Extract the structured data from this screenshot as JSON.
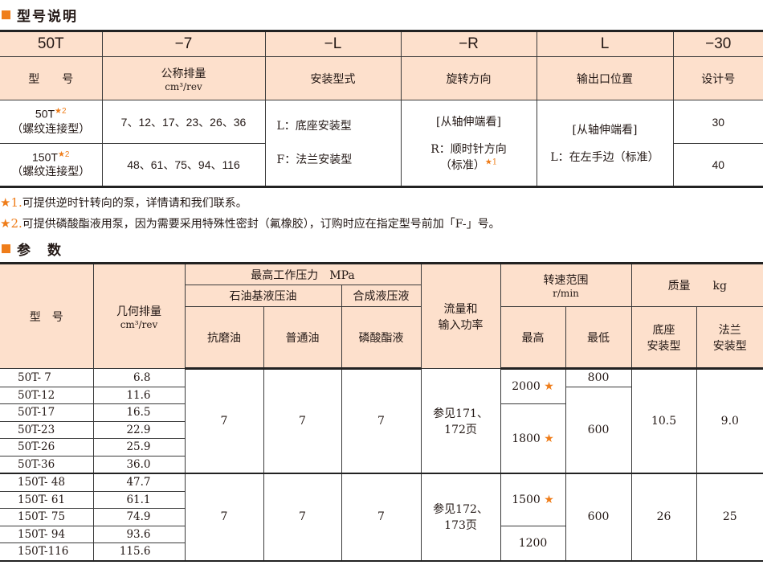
{
  "section1": {
    "title": "型号说明"
  },
  "model_table": {
    "codes": [
      "50T",
      "−7",
      "−L",
      "−R",
      "L",
      "−30"
    ],
    "headers": [
      "型　　号",
      "公称排量",
      "cm³/rev",
      "安装型式",
      "旋转方向",
      "输出口位置",
      "设计号"
    ],
    "rows": [
      {
        "model": "50T",
        "model_note": "★2",
        "type": "（螺纹连接型）",
        "displacement": "7、12、17、23、26、36",
        "design": "30"
      },
      {
        "model": "150T",
        "model_note": "★2",
        "type": "（螺纹连接型）",
        "displacement": "48、61、75、94、116",
        "design": "40"
      }
    ],
    "mounting": [
      "L：底座安装型",
      "F：法兰安装型"
    ],
    "rotation": [
      "[从轴伸端看]",
      "R：顺时针方向",
      "（标准）",
      "★1"
    ],
    "outlet": [
      "[从轴伸端看]",
      "L：在左手边（标准）"
    ]
  },
  "notes": [
    {
      "mark": "★1.",
      "text": "可提供逆时针转向的泵，详情请和我们联系。"
    },
    {
      "mark": "★2.",
      "text": "可提供磷酸酯液用泵，因为需要采用特殊性密封（氟橡胶），订购时应在指定型号前加「F-」号。"
    }
  ],
  "section2": {
    "title": "参　数"
  },
  "param_table": {
    "headers": {
      "model": "型　号",
      "disp": "几何排量",
      "disp_unit": "cm³/rev",
      "pressure": "最高工作压力　MPa",
      "petroleum": "石油基液压油",
      "synthetic": "合成液压液",
      "antiwear": "抗磨油",
      "ordinary": "普通油",
      "phosphate": "磷酸酯液",
      "flow": "流量和",
      "flow2": "输入功率",
      "speed": "转速范围",
      "speed_unit": "r/min",
      "max": "最高",
      "min": "最低",
      "mass": "质量　　kg",
      "foot": "底座",
      "foot2": "安装型",
      "flange": "法兰",
      "flange2": "安装型"
    },
    "group1": {
      "rows": [
        [
          "50T- 7",
          "6.8"
        ],
        [
          "50T-12",
          "11.6"
        ],
        [
          "50T-17",
          "16.5"
        ],
        [
          "50T-23",
          "22.9"
        ],
        [
          "50T-26",
          "25.9"
        ],
        [
          "50T-36",
          "36.0"
        ]
      ],
      "antiwear": "7",
      "ordinary": "7",
      "phosphate": "7",
      "flow": "参见171、",
      "flow2": "172页",
      "max": [
        "2000",
        "1800"
      ],
      "min": [
        "800",
        "600"
      ],
      "foot": "10.5",
      "flange": "9.0"
    },
    "group2": {
      "rows": [
        [
          "150T- 48",
          "47.7"
        ],
        [
          "150T- 61",
          "61.1"
        ],
        [
          "150T- 75",
          "74.9"
        ],
        [
          "150T- 94",
          "93.6"
        ],
        [
          "150T-116",
          "115.6"
        ]
      ],
      "antiwear": "7",
      "ordinary": "7",
      "phosphate": "7",
      "flow": "参见172、",
      "flow2": "173页",
      "max": [
        "1500",
        "1200"
      ],
      "min": [
        "600"
      ],
      "foot": "26",
      "flange": "25"
    },
    "star": "★"
  },
  "colors": {
    "accent": "#ef7d1a",
    "header_bg": "#fde0cc"
  }
}
